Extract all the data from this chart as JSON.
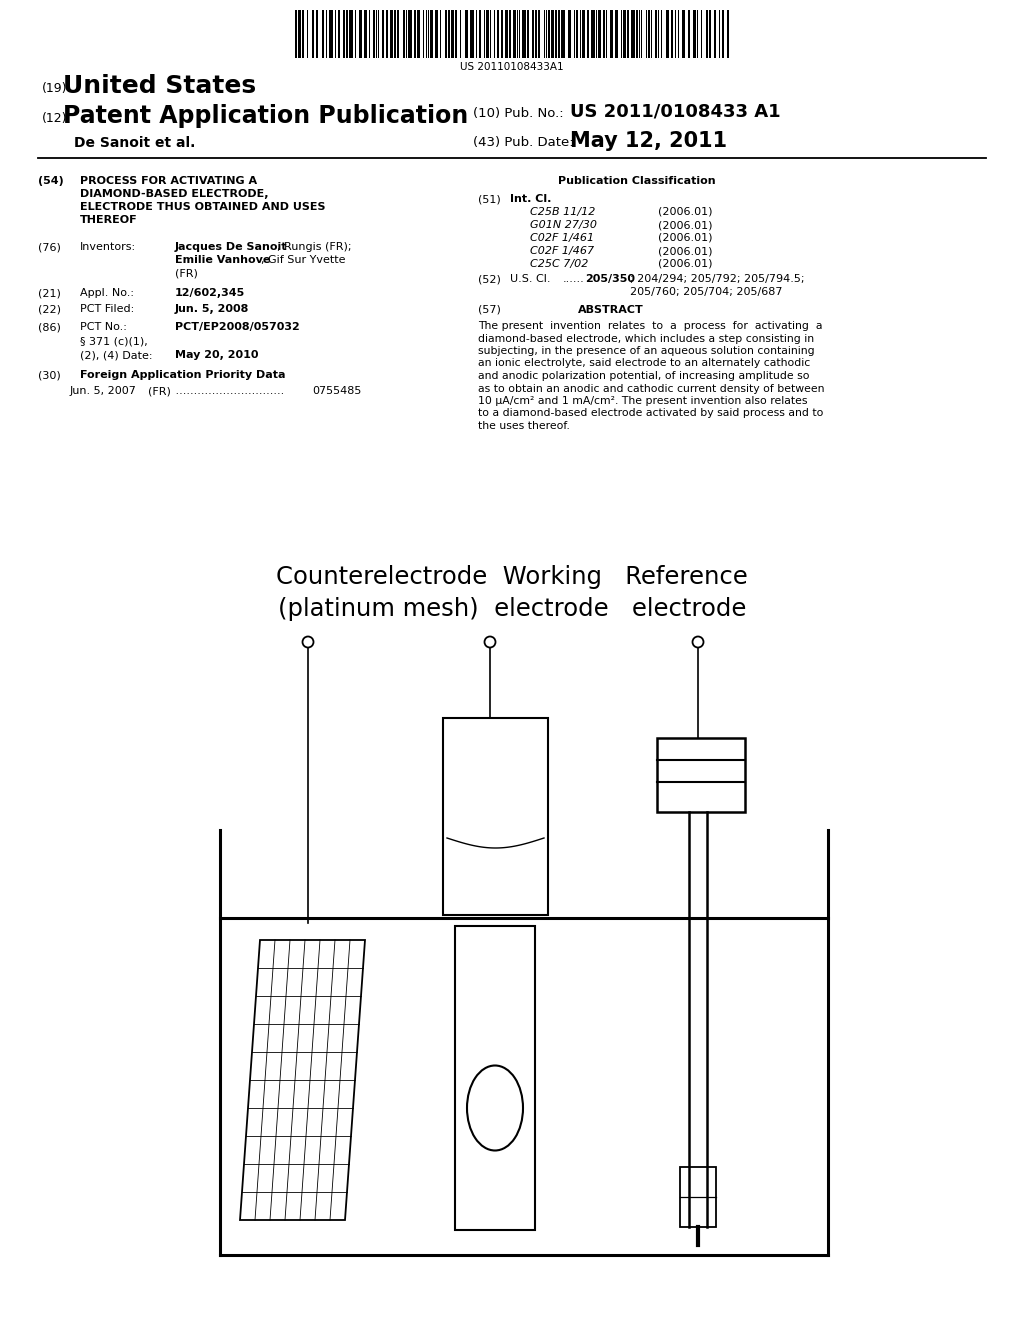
{
  "bg_color": "#ffffff",
  "barcode_text": "US 20110108433A1",
  "header_19_small": "(19)",
  "header_19_large": "United States",
  "header_12_small": "(12)",
  "header_12_large": "Patent Application Publication",
  "pub_no_label": "(10) Pub. No.:",
  "pub_no_value": "US 2011/0108433 A1",
  "pub_date_label": "(43) Pub. Date:",
  "pub_date_value": "May 12, 2011",
  "author_line": "De Sanoit et al.",
  "f54_label": "(54)",
  "f54_lines": [
    "PROCESS FOR ACTIVATING A",
    "DIAMOND-BASED ELECTRODE,",
    "ELECTRODE THUS OBTAINED AND USES",
    "THEREOF"
  ],
  "f76_label": "(76)",
  "f76_name": "Inventors:",
  "f76_name1_bold": "Jacques De Sanoit",
  "f76_name1_rest": ", Rungis (FR);",
  "f76_name2_bold": "Emilie Vanhove",
  "f76_name2_rest": ", Gif Sur Yvette",
  "f76_name3": "(FR)",
  "f21_label": "(21)",
  "f21_name": "Appl. No.:",
  "f21_value": "12/602,345",
  "f22_label": "(22)",
  "f22_name": "PCT Filed:",
  "f22_value": "Jun. 5, 2008",
  "f86_label": "(86)",
  "f86_name": "PCT No.:",
  "f86_value": "PCT/EP2008/057032",
  "f86b_line1": "§ 371 (c)(1),",
  "f86b_line2": "(2), (4) Date:",
  "f86b_value": "May 20, 2010",
  "f30_label": "(30)",
  "f30_name": "Foreign Application Priority Data",
  "f30_date": "Jun. 5, 2007",
  "f30_country": "(FR)",
  "f30_number": "0755485",
  "pub_class_title": "Publication Classification",
  "f51_label": "(51)",
  "f51_name": "Int. Cl.",
  "int_cl_entries": [
    [
      "C25B 11/12",
      "(2006.01)"
    ],
    [
      "G01N 27/30",
      "(2006.01)"
    ],
    [
      "C02F 1/461",
      "(2006.01)"
    ],
    [
      "C02F 1/467",
      "(2006.01)"
    ],
    [
      "C25C 7/02",
      "(2006.01)"
    ]
  ],
  "f52_label": "(52)",
  "f52_name": "U.S. Cl.",
  "f52_value_bold": "205/350",
  "f52_value_rest": "; 204/294; 205/792; 205/794.5;",
  "f52_value_line2": "205/760; 205/704; 205/687",
  "f57_label": "(57)",
  "f57_name": "ABSTRACT",
  "abstract_lines": [
    "The present  invention  relates  to  a  process  for  activating  a",
    "diamond-based electrode, which includes a step consisting in",
    "subjecting, in the presence of an aqueous solution containing",
    "an ionic electrolyte, said electrode to an alternately cathodic",
    "and anodic polarization potential, of increasing amplitude so",
    "as to obtain an anodic and cathodic current density of between",
    "10 μA/cm² and 1 mA/cm². The present invention also relates",
    "to a diamond-based electrode activated by said process and to",
    "the uses thereof."
  ],
  "diag_line1": "Counterelectrode  Working   Reference",
  "diag_line2": "(platinum mesh)  electrode   electrode"
}
